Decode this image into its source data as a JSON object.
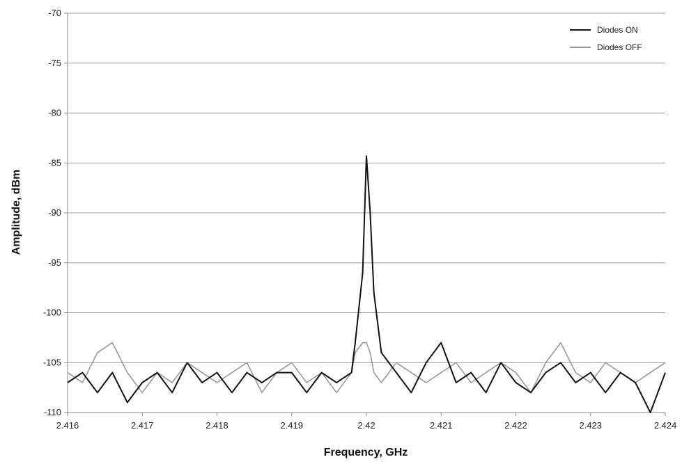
{
  "chart_data": {
    "type": "line",
    "xlabel": "Frequency, GHz",
    "ylabel": "Amplitude, dBm",
    "xlim": [
      2.416,
      2.424
    ],
    "ylim": [
      -110,
      -70
    ],
    "x_ticks": [
      "2.416",
      "2.417",
      "2.418",
      "2.419",
      "2.42",
      "2.421",
      "2.422",
      "2.423",
      "2.424"
    ],
    "y_ticks": [
      "-70",
      "-75",
      "-80",
      "-85",
      "-90",
      "-95",
      "-100",
      "-105",
      "-110"
    ],
    "grid": "horizontal",
    "legend_position": "top-right",
    "series": [
      {
        "name": "Diodes ON",
        "color": "#111111",
        "peak": {
          "x": 2.42,
          "y": -84.3
        },
        "points": [
          [
            2.416,
            -107
          ],
          [
            2.4162,
            -106
          ],
          [
            2.4164,
            -108
          ],
          [
            2.4166,
            -106
          ],
          [
            2.4168,
            -109
          ],
          [
            2.417,
            -107
          ],
          [
            2.4172,
            -106
          ],
          [
            2.4174,
            -108
          ],
          [
            2.4176,
            -105
          ],
          [
            2.4178,
            -107
          ],
          [
            2.418,
            -106
          ],
          [
            2.4182,
            -108
          ],
          [
            2.4184,
            -106
          ],
          [
            2.4186,
            -107
          ],
          [
            2.4188,
            -106
          ],
          [
            2.419,
            -106
          ],
          [
            2.4192,
            -108
          ],
          [
            2.4194,
            -106
          ],
          [
            2.4196,
            -107
          ],
          [
            2.4198,
            -106
          ],
          [
            2.41985,
            -103
          ],
          [
            2.41995,
            -96
          ],
          [
            2.42,
            -84.3
          ],
          [
            2.42005,
            -90
          ],
          [
            2.4201,
            -98
          ],
          [
            2.4202,
            -104
          ],
          [
            2.4204,
            -106
          ],
          [
            2.4206,
            -108
          ],
          [
            2.4208,
            -105
          ],
          [
            2.421,
            -103
          ],
          [
            2.4212,
            -107
          ],
          [
            2.4214,
            -106
          ],
          [
            2.4216,
            -108
          ],
          [
            2.4218,
            -105
          ],
          [
            2.422,
            -107
          ],
          [
            2.4222,
            -108
          ],
          [
            2.4224,
            -106
          ],
          [
            2.4226,
            -105
          ],
          [
            2.4228,
            -107
          ],
          [
            2.423,
            -106
          ],
          [
            2.4232,
            -108
          ],
          [
            2.4234,
            -106
          ],
          [
            2.4236,
            -107
          ],
          [
            2.4238,
            -110
          ],
          [
            2.424,
            -106
          ]
        ]
      },
      {
        "name": "Diodes OFF",
        "color": "#999999",
        "points": [
          [
            2.416,
            -106
          ],
          [
            2.4162,
            -107
          ],
          [
            2.4164,
            -104
          ],
          [
            2.4166,
            -103
          ],
          [
            2.4168,
            -106
          ],
          [
            2.417,
            -108
          ],
          [
            2.4172,
            -106
          ],
          [
            2.4174,
            -107
          ],
          [
            2.4176,
            -105
          ],
          [
            2.4178,
            -106
          ],
          [
            2.418,
            -107
          ],
          [
            2.4182,
            -106
          ],
          [
            2.4184,
            -105
          ],
          [
            2.4186,
            -108
          ],
          [
            2.4188,
            -106
          ],
          [
            2.419,
            -105
          ],
          [
            2.4192,
            -107
          ],
          [
            2.4194,
            -106
          ],
          [
            2.4196,
            -108
          ],
          [
            2.4198,
            -106
          ],
          [
            2.41985,
            -104
          ],
          [
            2.41995,
            -103
          ],
          [
            2.42,
            -103
          ],
          [
            2.42005,
            -104
          ],
          [
            2.4201,
            -106
          ],
          [
            2.4202,
            -107
          ],
          [
            2.4204,
            -105
          ],
          [
            2.4206,
            -106
          ],
          [
            2.4208,
            -107
          ],
          [
            2.421,
            -106
          ],
          [
            2.4212,
            -105
          ],
          [
            2.4214,
            -107
          ],
          [
            2.4216,
            -106
          ],
          [
            2.4218,
            -105
          ],
          [
            2.422,
            -106
          ],
          [
            2.4222,
            -108
          ],
          [
            2.4224,
            -105
          ],
          [
            2.4226,
            -103
          ],
          [
            2.4228,
            -106
          ],
          [
            2.423,
            -107
          ],
          [
            2.4232,
            -105
          ],
          [
            2.4234,
            -106
          ],
          [
            2.4236,
            -107
          ],
          [
            2.4238,
            -106
          ],
          [
            2.424,
            -105
          ]
        ]
      }
    ]
  }
}
